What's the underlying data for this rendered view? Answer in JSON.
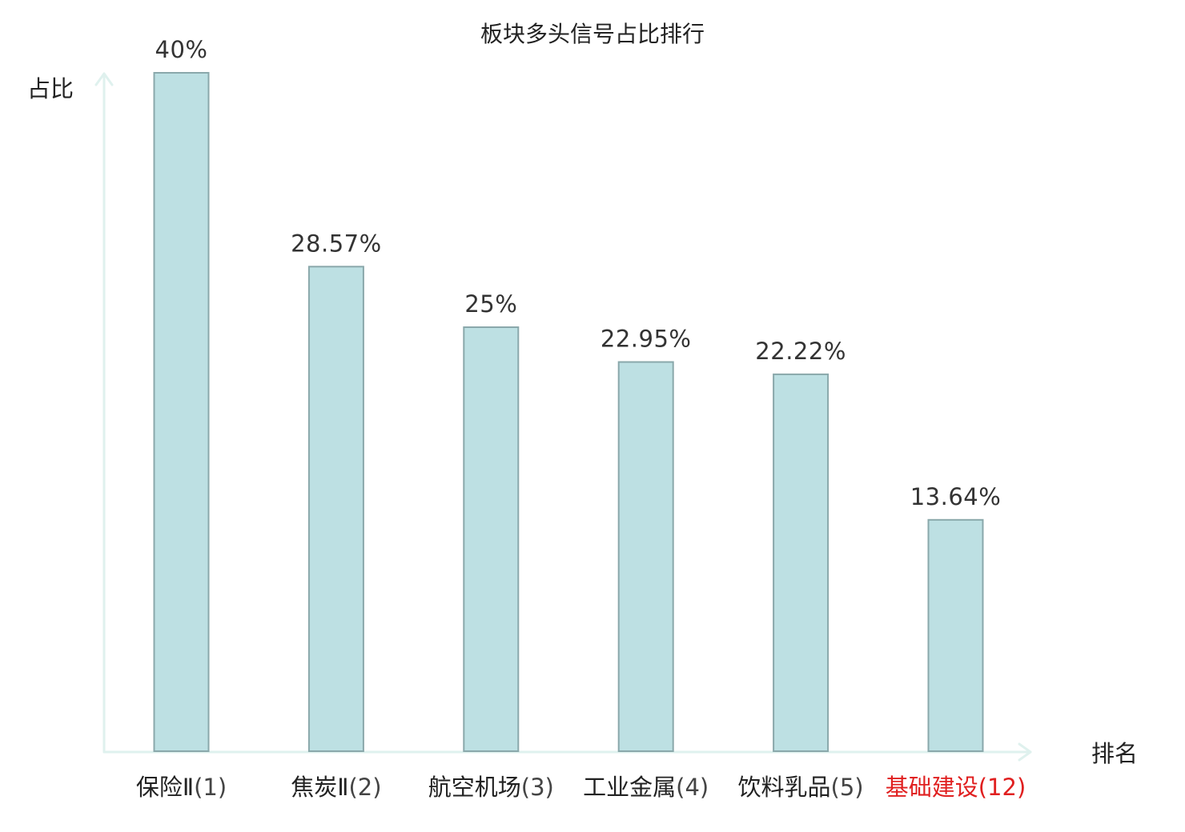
{
  "chart_data": {
    "type": "bar",
    "title": "板块多头信号占比排行",
    "xlabel": "排名",
    "ylabel": "占比",
    "ylim": [
      0,
      40
    ],
    "grid": false,
    "categories": [
      {
        "name": "保险Ⅱ",
        "rank": "(1)",
        "highlight": false
      },
      {
        "name": "焦炭Ⅱ",
        "rank": "(2)",
        "highlight": false
      },
      {
        "name": "航空机场",
        "rank": "(3)",
        "highlight": false
      },
      {
        "name": "工业金属",
        "rank": "(4)",
        "highlight": false
      },
      {
        "name": "饮料乳品",
        "rank": "(5)",
        "highlight": false
      },
      {
        "name": "基础建设",
        "rank": "(12)",
        "highlight": true
      }
    ],
    "values": [
      40,
      28.57,
      25,
      22.95,
      22.22,
      13.64
    ],
    "value_labels": [
      "40%",
      "28.57%",
      "25%",
      "22.95%",
      "22.22%",
      "13.64%"
    ]
  },
  "colors": {
    "bar_fill": "#bde0e3",
    "bar_stroke": "#8aa8ab",
    "axis": "#dff1ee",
    "text": "#222222",
    "rank_text": "#444444",
    "highlight": "#e02020"
  }
}
